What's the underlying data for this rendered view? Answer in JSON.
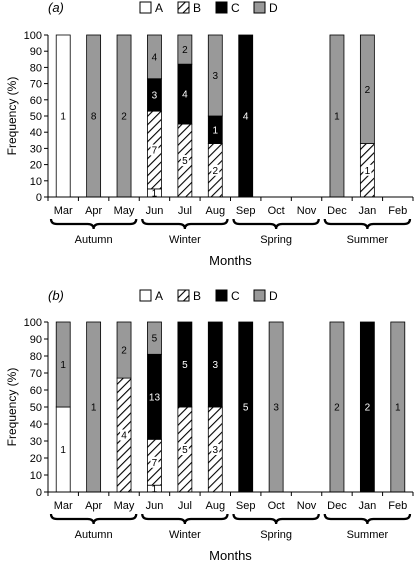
{
  "chart_data": [
    {
      "type": "bar",
      "stacked": true,
      "panel_label": "(a)",
      "categories": [
        "Mar",
        "Apr",
        "May",
        "Jun",
        "Jul",
        "Aug",
        "Sep",
        "Oct",
        "Nov",
        "Dec",
        "Jan",
        "Feb"
      ],
      "series": [
        {
          "name": "A",
          "values": [
            100,
            0,
            0,
            5,
            0,
            0,
            0,
            0,
            0,
            0,
            0,
            0
          ],
          "counts": [
            1,
            null,
            null,
            1,
            null,
            null,
            null,
            null,
            null,
            null,
            null,
            null
          ]
        },
        {
          "name": "B",
          "values": [
            0,
            0,
            0,
            48,
            45,
            33,
            0,
            0,
            0,
            0,
            33,
            0
          ],
          "counts": [
            null,
            null,
            null,
            7,
            5,
            2,
            null,
            null,
            null,
            null,
            1,
            null
          ]
        },
        {
          "name": "C",
          "values": [
            0,
            0,
            0,
            20,
            37,
            17,
            100,
            0,
            0,
            0,
            0,
            0
          ],
          "counts": [
            null,
            null,
            null,
            3,
            4,
            1,
            4,
            null,
            null,
            null,
            null,
            null
          ]
        },
        {
          "name": "D",
          "values": [
            0,
            100,
            100,
            27,
            18,
            50,
            0,
            0,
            0,
            100,
            67,
            0
          ],
          "counts": [
            null,
            8,
            2,
            4,
            2,
            3,
            null,
            null,
            null,
            1,
            2,
            null
          ]
        }
      ],
      "xlabel": "Months",
      "ylabel": "Frequency (%)",
      "ylim": [
        0,
        100
      ],
      "yticks": [
        0,
        10,
        20,
        30,
        40,
        50,
        60,
        70,
        80,
        90,
        100
      ],
      "seasons": [
        {
          "label": "Autumn",
          "from": 0,
          "to": 2
        },
        {
          "label": "Winter",
          "from": 3,
          "to": 5
        },
        {
          "label": "Spring",
          "from": 6,
          "to": 8
        },
        {
          "label": "Summer",
          "from": 9,
          "to": 11
        }
      ],
      "legend": "top-center",
      "grid": false
    },
    {
      "type": "bar",
      "stacked": true,
      "panel_label": "(b)",
      "categories": [
        "Mar",
        "Apr",
        "May",
        "Jun",
        "Jul",
        "Aug",
        "Sep",
        "Oct",
        "Nov",
        "Dec",
        "Jan",
        "Feb"
      ],
      "series": [
        {
          "name": "A",
          "values": [
            50,
            0,
            0,
            4,
            0,
            0,
            0,
            0,
            0,
            0,
            0,
            0
          ],
          "counts": [
            1,
            null,
            null,
            1,
            null,
            null,
            null,
            null,
            null,
            null,
            null,
            null
          ]
        },
        {
          "name": "B",
          "values": [
            0,
            0,
            67,
            27,
            50,
            50,
            0,
            0,
            0,
            0,
            0,
            0
          ],
          "counts": [
            null,
            null,
            4,
            7,
            5,
            3,
            null,
            null,
            null,
            null,
            null,
            null
          ]
        },
        {
          "name": "C",
          "values": [
            0,
            0,
            0,
            50,
            50,
            50,
            100,
            0,
            0,
            0,
            100,
            0
          ],
          "counts": [
            null,
            null,
            null,
            13,
            5,
            3,
            5,
            null,
            null,
            null,
            2,
            null
          ]
        },
        {
          "name": "D",
          "values": [
            50,
            100,
            33,
            19,
            0,
            0,
            0,
            100,
            0,
            100,
            0,
            100
          ],
          "counts": [
            1,
            1,
            2,
            5,
            null,
            null,
            null,
            3,
            null,
            2,
            null,
            1
          ]
        }
      ],
      "xlabel": "Months",
      "ylabel": "Frequency (%)",
      "ylim": [
        0,
        100
      ],
      "yticks": [
        0,
        10,
        20,
        30,
        40,
        50,
        60,
        70,
        80,
        90,
        100
      ],
      "seasons": [
        {
          "label": "Autumn",
          "from": 0,
          "to": 2
        },
        {
          "label": "Winter",
          "from": 3,
          "to": 5
        },
        {
          "label": "Spring",
          "from": 6,
          "to": 8
        },
        {
          "label": "Summer",
          "from": 9,
          "to": 11
        }
      ],
      "legend": "top-center",
      "grid": false
    }
  ],
  "colors": {
    "A": "#ffffff",
    "B": "hatch",
    "C": "#000000",
    "D": "#999999"
  }
}
